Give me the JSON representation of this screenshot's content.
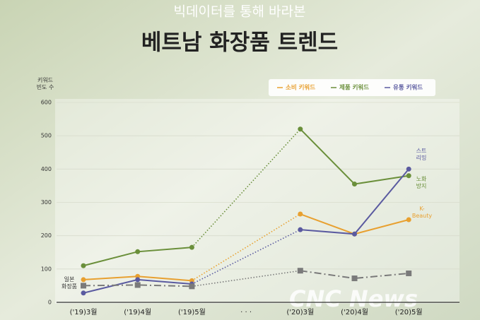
{
  "chart_data": {
    "type": "line",
    "subtitle": "빅데이터를 통해 바라본",
    "title": "베트남 화장품 트렌드",
    "y_label": "키워드\n빈도 수",
    "watermark": "CNC News",
    "categories": [
      "('19)3월",
      "('19)4월",
      "('19)5월",
      "· · ·",
      "('20)3월",
      "('20)4월",
      "('20)5월"
    ],
    "series": [
      {
        "name": "소비 키워드",
        "color": "#e8a030",
        "values": [
          68,
          78,
          65,
          null,
          265,
          205,
          248
        ]
      },
      {
        "name": "제품 키워드",
        "color": "#6a8f3a",
        "values": [
          110,
          152,
          165,
          null,
          520,
          355,
          380
        ]
      },
      {
        "name": "유통 키워드",
        "color": "#5a5aa0",
        "values": [
          28,
          68,
          55,
          null,
          218,
          205,
          400
        ]
      },
      {
        "color": "#7a7a7a",
        "dash": "dashdot",
        "marker": "square",
        "values": [
          50,
          52,
          48,
          null,
          95,
          72,
          87
        ]
      }
    ],
    "annotations": [
      "스트\n리밍",
      "노화\n방지",
      "K-\nBeauty",
      "일본\n화장품"
    ],
    "gap_style": "dotted",
    "ylim": [
      0,
      600
    ],
    "yticks": [
      0,
      100,
      200,
      300,
      400,
      500,
      600
    ],
    "grid": true
  }
}
